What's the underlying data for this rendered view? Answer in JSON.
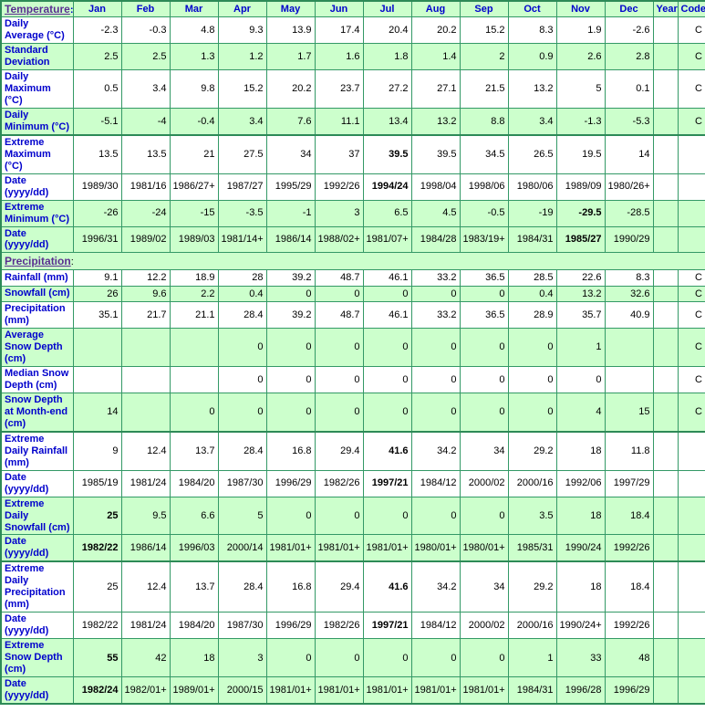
{
  "colors": {
    "row_white": "#FFFFFF",
    "row_green": "#CCFFCC",
    "grid_green": "#339966",
    "grid_heavy_green": "#2D8A57",
    "label_blue": "#0000CC",
    "section_link_purple": "#5A2D91",
    "value_black": "#000000"
  },
  "columns": [
    "Jan",
    "Feb",
    "Mar",
    "Apr",
    "May",
    "Jun",
    "Jul",
    "Aug",
    "Sep",
    "Oct",
    "Nov",
    "Dec",
    "Year",
    "Code"
  ],
  "sections": [
    {
      "id": "temperature",
      "header_label": "Temperature",
      "header_suffix": ":",
      "rows": [
        {
          "name": "daily-average",
          "label": "Daily Average (°C)",
          "values": [
            "-2.3",
            "-0.3",
            "4.8",
            "9.3",
            "13.9",
            "17.4",
            "20.4",
            "20.2",
            "15.2",
            "8.3",
            "1.9",
            "-2.6"
          ],
          "year": "",
          "code": "C",
          "shade": "white",
          "bold": [],
          "group_end": false
        },
        {
          "name": "standard-deviation",
          "label": "Standard Deviation",
          "values": [
            "2.5",
            "2.5",
            "1.3",
            "1.2",
            "1.7",
            "1.6",
            "1.8",
            "1.4",
            "2",
            "0.9",
            "2.6",
            "2.8"
          ],
          "year": "",
          "code": "C",
          "shade": "green",
          "bold": [],
          "group_end": false
        },
        {
          "name": "daily-maximum",
          "label": "Daily Maximum (°C)",
          "values": [
            "0.5",
            "3.4",
            "9.8",
            "15.2",
            "20.2",
            "23.7",
            "27.2",
            "27.1",
            "21.5",
            "13.2",
            "5",
            "0.1"
          ],
          "year": "",
          "code": "C",
          "shade": "white",
          "bold": [],
          "group_end": false
        },
        {
          "name": "daily-minimum",
          "label": "Daily Minimum (°C)",
          "values": [
            "-5.1",
            "-4",
            "-0.4",
            "3.4",
            "7.6",
            "11.1",
            "13.4",
            "13.2",
            "8.8",
            "3.4",
            "-1.3",
            "-5.3"
          ],
          "year": "",
          "code": "C",
          "shade": "green",
          "bold": [],
          "group_end": true
        },
        {
          "name": "extreme-maximum",
          "label": "Extreme Maximum (°C)",
          "values": [
            "13.5",
            "13.5",
            "21",
            "27.5",
            "34",
            "37",
            "39.5",
            "39.5",
            "34.5",
            "26.5",
            "19.5",
            "14"
          ],
          "year": "",
          "code": "",
          "shade": "white",
          "bold": [
            6
          ],
          "group_end": false
        },
        {
          "name": "date-extreme-maximum",
          "label": "Date (yyyy/dd)",
          "values": [
            "1989/30",
            "1981/16",
            "1986/27+",
            "1987/27",
            "1995/29",
            "1992/26",
            "1994/24",
            "1998/04",
            "1998/06",
            "1980/06",
            "1989/09",
            "1980/26+"
          ],
          "year": "",
          "code": "",
          "shade": "white",
          "bold": [
            6
          ],
          "group_end": false
        },
        {
          "name": "extreme-minimum",
          "label": "Extreme Minimum (°C)",
          "values": [
            "-26",
            "-24",
            "-15",
            "-3.5",
            "-1",
            "3",
            "6.5",
            "4.5",
            "-0.5",
            "-19",
            "-29.5",
            "-28.5"
          ],
          "year": "",
          "code": "",
          "shade": "green",
          "bold": [
            10
          ],
          "group_end": false
        },
        {
          "name": "date-extreme-minimum",
          "label": "Date (yyyy/dd)",
          "values": [
            "1996/31",
            "1989/02",
            "1989/03",
            "1981/14+",
            "1986/14",
            "1988/02+",
            "1981/07+",
            "1984/28",
            "1983/19+",
            "1984/31",
            "1985/27",
            "1990/29"
          ],
          "year": "",
          "code": "",
          "shade": "green",
          "bold": [
            10
          ],
          "group_end": false
        }
      ]
    },
    {
      "id": "precipitation",
      "header_label": "Precipitation",
      "header_suffix": ":",
      "rows": [
        {
          "name": "rainfall",
          "label": "Rainfall (mm)",
          "values": [
            "9.1",
            "12.2",
            "18.9",
            "28",
            "39.2",
            "48.7",
            "46.1",
            "33.2",
            "36.5",
            "28.5",
            "22.6",
            "8.3"
          ],
          "year": "",
          "code": "C",
          "shade": "white",
          "bold": [],
          "group_end": false
        },
        {
          "name": "snowfall",
          "label": "Snowfall (cm)",
          "values": [
            "26",
            "9.6",
            "2.2",
            "0.4",
            "0",
            "0",
            "0",
            "0",
            "0",
            "0.4",
            "13.2",
            "32.6"
          ],
          "year": "",
          "code": "C",
          "shade": "green",
          "bold": [],
          "group_end": false
        },
        {
          "name": "precipitation",
          "label": "Precipitation (mm)",
          "values": [
            "35.1",
            "21.7",
            "21.1",
            "28.4",
            "39.2",
            "48.7",
            "46.1",
            "33.2",
            "36.5",
            "28.9",
            "35.7",
            "40.9"
          ],
          "year": "",
          "code": "C",
          "shade": "white",
          "bold": [],
          "group_end": false
        },
        {
          "name": "average-snow-depth",
          "label": "Average Snow Depth (cm)",
          "values": [
            "",
            "",
            "",
            "0",
            "0",
            "0",
            "0",
            "0",
            "0",
            "0",
            "1",
            ""
          ],
          "year": "",
          "code": "C",
          "shade": "green",
          "bold": [],
          "group_end": false
        },
        {
          "name": "median-snow-depth",
          "label": "Median Snow Depth (cm)",
          "values": [
            "",
            "",
            "",
            "0",
            "0",
            "0",
            "0",
            "0",
            "0",
            "0",
            "0",
            ""
          ],
          "year": "",
          "code": "C",
          "shade": "white",
          "bold": [],
          "group_end": false
        },
        {
          "name": "snow-depth-month-end",
          "label": "Snow Depth at Month-end (cm)",
          "values": [
            "14",
            "",
            "0",
            "0",
            "0",
            "0",
            "0",
            "0",
            "0",
            "0",
            "4",
            "15"
          ],
          "year": "",
          "code": "C",
          "shade": "green",
          "bold": [],
          "group_end": true
        },
        {
          "name": "extreme-daily-rainfall",
          "label": "Extreme Daily Rainfall (mm)",
          "values": [
            "9",
            "12.4",
            "13.7",
            "28.4",
            "16.8",
            "29.4",
            "41.6",
            "34.2",
            "34",
            "29.2",
            "18",
            "11.8"
          ],
          "year": "",
          "code": "",
          "shade": "white",
          "bold": [
            6
          ],
          "group_end": false
        },
        {
          "name": "date-extreme-daily-rainfall",
          "label": "Date (yyyy/dd)",
          "values": [
            "1985/19",
            "1981/24",
            "1984/20",
            "1987/30",
            "1996/29",
            "1982/26",
            "1997/21",
            "1984/12",
            "2000/02",
            "2000/16",
            "1992/06",
            "1997/29"
          ],
          "year": "",
          "code": "",
          "shade": "white",
          "bold": [
            6
          ],
          "group_end": false
        },
        {
          "name": "extreme-daily-snowfall",
          "label": "Extreme Daily Snowfall (cm)",
          "values": [
            "25",
            "9.5",
            "6.6",
            "5",
            "0",
            "0",
            "0",
            "0",
            "0",
            "3.5",
            "18",
            "18.4"
          ],
          "year": "",
          "code": "",
          "shade": "green",
          "bold": [
            0
          ],
          "group_end": false
        },
        {
          "name": "date-extreme-daily-snowfall",
          "label": "Date (yyyy/dd)",
          "values": [
            "1982/22",
            "1986/14",
            "1996/03",
            "2000/14",
            "1981/01+",
            "1981/01+",
            "1981/01+",
            "1980/01+",
            "1980/01+",
            "1985/31",
            "1990/24",
            "1992/26"
          ],
          "year": "",
          "code": "",
          "shade": "green",
          "bold": [
            0
          ],
          "group_end": true
        },
        {
          "name": "extreme-daily-precipitation",
          "label": "Extreme Daily Precipitation (mm)",
          "values": [
            "25",
            "12.4",
            "13.7",
            "28.4",
            "16.8",
            "29.4",
            "41.6",
            "34.2",
            "34",
            "29.2",
            "18",
            "18.4"
          ],
          "year": "",
          "code": "",
          "shade": "white",
          "bold": [
            6
          ],
          "group_end": false
        },
        {
          "name": "date-extreme-daily-precipitation",
          "label": "Date (yyyy/dd)",
          "values": [
            "1982/22",
            "1981/24",
            "1984/20",
            "1987/30",
            "1996/29",
            "1982/26",
            "1997/21",
            "1984/12",
            "2000/02",
            "2000/16",
            "1990/24+",
            "1992/26"
          ],
          "year": "",
          "code": "",
          "shade": "white",
          "bold": [
            6
          ],
          "group_end": false
        },
        {
          "name": "extreme-snow-depth",
          "label": "Extreme Snow Depth (cm)",
          "values": [
            "55",
            "42",
            "18",
            "3",
            "0",
            "0",
            "0",
            "0",
            "0",
            "1",
            "33",
            "48"
          ],
          "year": "",
          "code": "",
          "shade": "green",
          "bold": [
            0
          ],
          "group_end": false
        },
        {
          "name": "date-extreme-snow-depth",
          "label": "Date (yyyy/dd)",
          "values": [
            "1982/24",
            "1982/01+",
            "1989/01+",
            "2000/15",
            "1981/01+",
            "1981/01+",
            "1981/01+",
            "1981/01+",
            "1981/01+",
            "1984/31",
            "1996/28",
            "1996/29"
          ],
          "year": "",
          "code": "",
          "shade": "green",
          "bold": [
            0
          ],
          "group_end": false
        }
      ]
    }
  ]
}
